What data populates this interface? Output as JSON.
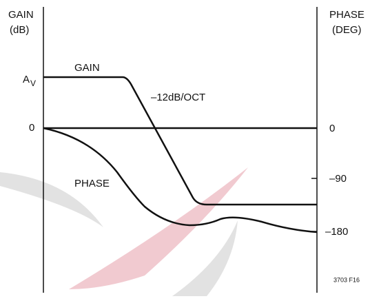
{
  "left_axis": {
    "title": [
      "GAIN",
      "(dB)"
    ],
    "labels": {
      "av_main": "A",
      "av_sub": "V",
      "zero": "0"
    }
  },
  "right_axis": {
    "title": [
      "PHASE",
      "(DEG)"
    ],
    "labels": [
      "0",
      "–90",
      "–180"
    ]
  },
  "curves": {
    "gain": "GAIN",
    "slope": "–12dB/OCT",
    "phase": "PHASE"
  },
  "figure_id": "3703 F16"
}
